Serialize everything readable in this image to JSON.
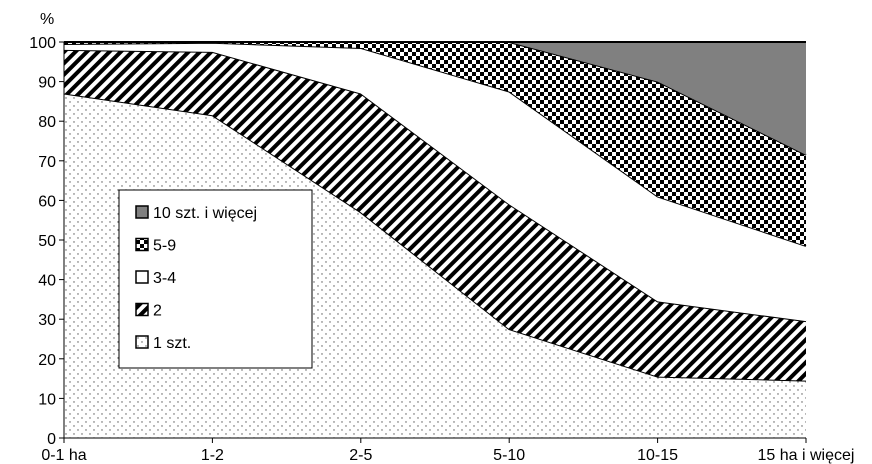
{
  "chart_data": {
    "type": "area",
    "stacked": true,
    "ylabel": "%",
    "ylim": [
      0,
      100
    ],
    "yticks": [
      0,
      10,
      20,
      30,
      40,
      50,
      60,
      70,
      80,
      90,
      100
    ],
    "categories": [
      "0-1 ha",
      "1-2",
      "2-5",
      "5-10",
      "10-15",
      "15 ha i więcej"
    ],
    "series": [
      {
        "name": "1 szt.",
        "values": [
          87,
          81.5,
          57,
          27.5,
          15.5,
          14.5
        ],
        "pattern": "dots"
      },
      {
        "name": "2",
        "values": [
          11,
          16,
          30,
          31.5,
          19,
          15
        ],
        "pattern": "diagonal"
      },
      {
        "name": "3-4",
        "values": [
          1.5,
          2.3,
          11.5,
          28.5,
          26.5,
          19
        ],
        "pattern": "white"
      },
      {
        "name": "5-9",
        "values": [
          0.5,
          0.2,
          1.5,
          12.5,
          29,
          23
        ],
        "pattern": "checker"
      },
      {
        "name": "10 szt. i więcej",
        "values": [
          0,
          0,
          0,
          0,
          10,
          28.5
        ],
        "pattern": "gray"
      }
    ],
    "legend": {
      "placement": "inside-left",
      "order": [
        "10 szt. i więcej",
        "5-9",
        "3-4",
        "2",
        "1 szt."
      ]
    },
    "grid": false
  }
}
